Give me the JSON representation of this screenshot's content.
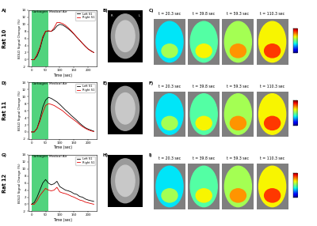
{
  "chart_data": [
    {
      "type": "line",
      "panel": "A)",
      "title": "Rat 10",
      "x_label": "Time (sec)",
      "y_label": "BOLD Signal Change (%)",
      "x": [
        0,
        10,
        20,
        30,
        40,
        50,
        60,
        70,
        80,
        90,
        100,
        110,
        120,
        130,
        140,
        150,
        160,
        170,
        180,
        190,
        200,
        210,
        220
      ],
      "series": [
        {
          "name": "Left S1",
          "color": "#000000",
          "values": [
            0,
            0,
            1,
            3,
            6,
            8,
            8,
            8,
            8.5,
            9.5,
            10,
            9.8,
            9.3,
            8.7,
            8,
            7.2,
            6.3,
            5.5,
            4.6,
            3.8,
            3,
            2.5,
            2
          ]
        },
        {
          "name": "Right S1",
          "color": "#e00000",
          "values": [
            0,
            0,
            1.5,
            3.5,
            6.5,
            8,
            8.2,
            8,
            9,
            10.5,
            10.5,
            10.2,
            9.7,
            9,
            8.2,
            7.3,
            6.4,
            5.5,
            4.6,
            3.7,
            3,
            2.4,
            2
          ]
        }
      ],
      "regions": [
        {
          "label": "Carbogen",
          "start": 0,
          "end": 60,
          "color": "#33cc66"
        }
      ],
      "annotations": [
        "Medical Air"
      ],
      "xlim": [
        -10,
        230
      ],
      "xticks": [
        0,
        50,
        100,
        150,
        200
      ],
      "ylim": [
        -2,
        14
      ],
      "yticks": [
        -2,
        0,
        2,
        4,
        6,
        8,
        10,
        12,
        14
      ],
      "legend": "upper right"
    },
    {
      "type": "line",
      "panel": "D)",
      "title": "Rat 11",
      "x_label": "Time (sec)",
      "y_label": "BOLD Signal Change (%)",
      "x": [
        0,
        10,
        20,
        30,
        40,
        50,
        60,
        70,
        80,
        90,
        100,
        110,
        120,
        130,
        140,
        150,
        160,
        170,
        180,
        190,
        200,
        210,
        220
      ],
      "series": [
        {
          "name": "Left S1",
          "color": "#000000",
          "values": [
            0,
            0,
            1,
            3.5,
            7,
            9,
            9.8,
            9.5,
            9,
            8.5,
            7.8,
            7,
            6.2,
            5.5,
            4.7,
            4,
            3.3,
            2.5,
            1.8,
            1.2,
            0.8,
            0.5,
            0.2
          ]
        },
        {
          "name": "Right S1",
          "color": "#e00000",
          "values": [
            0,
            0,
            1,
            3,
            5.5,
            7.5,
            8,
            7.8,
            7.5,
            7,
            6.5,
            6,
            5.3,
            4.6,
            4,
            3.4,
            2.8,
            2.1,
            1.5,
            1,
            0.6,
            0.3,
            0.1
          ]
        }
      ],
      "regions": [
        {
          "label": "Carbogen",
          "start": 0,
          "end": 60,
          "color": "#33cc66"
        }
      ],
      "annotations": [
        "Medical Air"
      ],
      "xlim": [
        -10,
        230
      ],
      "xticks": [
        0,
        50,
        100,
        150,
        200
      ],
      "ylim": [
        -2,
        14
      ],
      "yticks": [
        -2,
        0,
        2,
        4,
        6,
        8,
        10,
        12,
        14
      ],
      "legend": "upper right"
    },
    {
      "type": "line",
      "panel": "G)",
      "title": "Rat 12",
      "x_label": "Time (sec)",
      "y_label": "BOLD Signal Change (%)",
      "x": [
        0,
        10,
        20,
        30,
        40,
        50,
        60,
        70,
        80,
        90,
        100,
        110,
        120,
        130,
        140,
        150,
        160,
        170,
        180,
        190,
        200,
        210,
        220
      ],
      "series": [
        {
          "name": "Left S1",
          "color": "#000000",
          "values": [
            0,
            0.5,
            2,
            4,
            6,
            7,
            6,
            5.5,
            5.8,
            6.5,
            5,
            4.5,
            4,
            3.8,
            3.5,
            3,
            2.8,
            2.2,
            2,
            1.5,
            1.2,
            1,
            0.8
          ]
        },
        {
          "name": "Right S1",
          "color": "#e00000",
          "values": [
            0,
            0,
            1,
            2.5,
            3.5,
            4.5,
            4,
            3.8,
            4,
            4.8,
            3.5,
            3.2,
            3,
            2.7,
            2.3,
            2,
            1.6,
            1.2,
            1,
            0.6,
            0.4,
            0.2,
            0
          ]
        }
      ],
      "regions": [
        {
          "label": "Carbogen",
          "start": 0,
          "end": 60,
          "color": "#33cc66"
        }
      ],
      "annotations": [
        "Medical Air"
      ],
      "xlim": [
        -10,
        230
      ],
      "xticks": [
        0,
        50,
        100,
        150,
        200
      ],
      "ylim": [
        -2,
        14
      ],
      "yticks": [
        -2,
        0,
        2,
        4,
        6,
        8,
        10,
        12,
        14
      ],
      "legend": "upper right"
    }
  ],
  "image_panels": [
    {
      "anatomy": {
        "panel": "B)",
        "orientation_labels": [
          "R",
          "L"
        ]
      },
      "maps": {
        "panel": "C)",
        "times": [
          "t = 20.3 sec",
          "t = 39.8 sec",
          "t = 59.3 sec",
          "t = 110.3 sec"
        ]
      }
    },
    {
      "anatomy": {
        "panel": "E)",
        "orientation_labels": []
      },
      "maps": {
        "panel": "F)",
        "times": [
          "t = 20.3 sec",
          "t = 39.8 sec",
          "t = 59.3 sec",
          "t = 110.3 sec"
        ]
      }
    },
    {
      "anatomy": {
        "panel": "H)",
        "orientation_labels": []
      },
      "maps": {
        "panel": "I)",
        "times": [
          "t = 20.3 sec",
          "t = 39.8 sec",
          "t = 59.3 sec",
          "t = 110.3 sec"
        ]
      }
    }
  ]
}
